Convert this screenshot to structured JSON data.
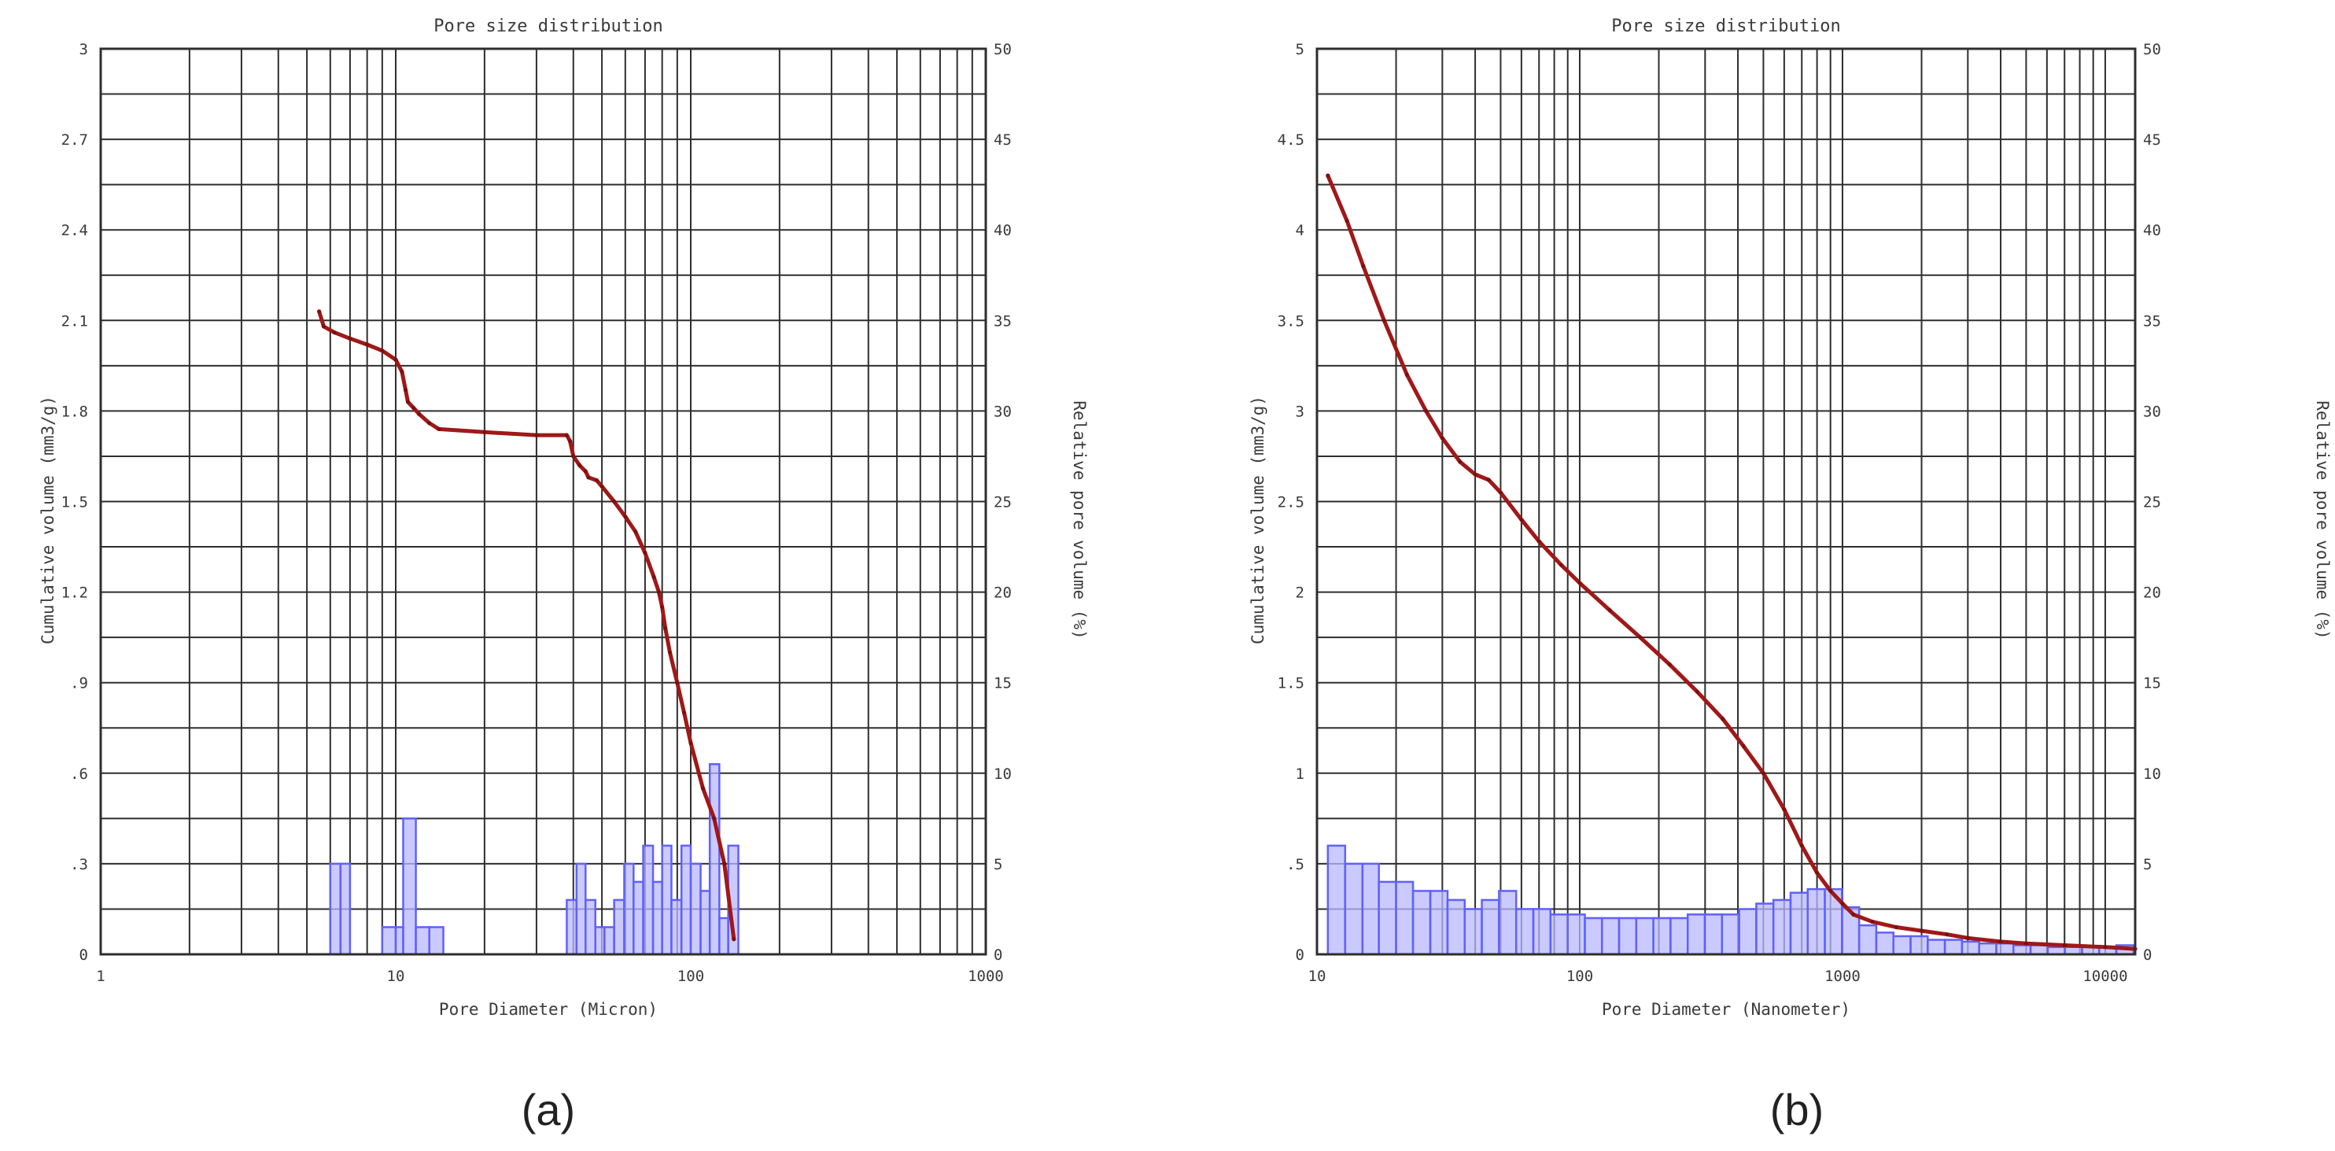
{
  "chart_data": [
    {
      "type": "line",
      "title": "Pore size distribution",
      "xlabel": "Pore Diameter (Micron)",
      "ylabel": "Cumulative volume (mm3/g)",
      "y2label": "Relative pore volume (%)",
      "xscale": "log",
      "xlim": [
        1,
        1000
      ],
      "ylim": [
        0,
        3
      ],
      "y2lim": [
        0,
        50
      ],
      "grid": true,
      "x_tick_labels": [
        "1",
        "10",
        "100",
        "1000"
      ],
      "y_tick_labels": [
        "0",
        ".3",
        ".6",
        ".9",
        "1.2",
        "1.5",
        "1.8",
        "2.1",
        "2.4",
        "2.7",
        "3"
      ],
      "y2_tick_labels": [
        "0",
        "5",
        "10",
        "15",
        "20",
        "25",
        "30",
        "35",
        "40",
        "45",
        "50"
      ],
      "panel_label": "(a)",
      "colors": {
        "curve": "#a01818",
        "bars": "#6060ff"
      },
      "series": [
        {
          "type": "line",
          "axis": "left",
          "x": [
            5.5,
            5.7,
            6.2,
            7,
            8,
            9,
            10,
            10.5,
            10.8,
            11,
            11.5,
            12,
            13,
            14,
            20,
            30,
            38,
            39,
            40,
            42,
            44,
            45,
            48,
            50,
            55,
            60,
            65,
            70,
            75,
            78,
            80,
            82,
            85,
            90,
            95,
            100,
            110,
            120,
            130,
            140
          ],
          "y": [
            2.13,
            2.08,
            2.06,
            2.04,
            2.02,
            2.0,
            1.97,
            1.93,
            1.87,
            1.83,
            1.81,
            1.79,
            1.76,
            1.74,
            1.73,
            1.72,
            1.72,
            1.7,
            1.65,
            1.62,
            1.6,
            1.58,
            1.57,
            1.55,
            1.5,
            1.45,
            1.4,
            1.33,
            1.25,
            1.2,
            1.15,
            1.08,
            1.0,
            0.9,
            0.8,
            0.7,
            0.55,
            0.45,
            0.3,
            0.05
          ]
        },
        {
          "type": "bar",
          "axis": "right",
          "x_left": [
            6.0,
            6.5,
            9.0,
            10.0,
            10.6,
            11.7,
            13.0,
            38.0,
            41.0,
            44.0,
            47.5,
            51.0,
            55.0,
            59.5,
            64.0,
            69.0,
            74.5,
            80.0,
            86.0,
            93.0,
            100.0,
            108.0,
            116.0,
            125.0,
            134.0
          ],
          "x_right": [
            6.5,
            7.0,
            10.0,
            10.6,
            11.7,
            13.0,
            14.5,
            41.0,
            44.0,
            47.5,
            51.0,
            55.0,
            59.5,
            64.0,
            69.0,
            74.5,
            80.0,
            86.0,
            93.0,
            100.0,
            108.0,
            116.0,
            125.0,
            134.0,
            145.0
          ],
          "values": [
            5,
            5,
            1.5,
            1.5,
            7.5,
            1.5,
            1.5,
            3.0,
            5.0,
            3.0,
            1.5,
            1.5,
            3.0,
            5.0,
            4.0,
            6.0,
            4.0,
            6.0,
            3.0,
            6.0,
            5.0,
            3.5,
            10.5,
            2.0,
            6.0
          ]
        }
      ]
    },
    {
      "type": "line",
      "title": "Pore size distribution",
      "xlabel": "Pore Diameter (Nanometer)",
      "ylabel": "Cumulative volume (mm3/g)",
      "y2label": "Relative pore volume (%)",
      "xscale": "log",
      "xlim": [
        10,
        13000
      ],
      "ylim": [
        0,
        5
      ],
      "y2lim": [
        0,
        50
      ],
      "grid": true,
      "x_tick_labels": [
        "10",
        "100",
        "1000",
        "10000"
      ],
      "y_tick_labels": [
        "0",
        ".5",
        "1",
        "1.5",
        "2",
        "2.5",
        "3",
        "3.5",
        "4",
        "4.5",
        "5"
      ],
      "y2_tick_labels": [
        "0",
        "5",
        "10",
        "15",
        "20",
        "25",
        "30",
        "35",
        "40",
        "45",
        "50"
      ],
      "panel_label": "(b)",
      "colors": {
        "curve": "#a01818",
        "bars": "#6060ff"
      },
      "series": [
        {
          "type": "line",
          "axis": "left",
          "x": [
            11,
            13,
            15,
            18,
            22,
            26,
            30,
            35,
            40,
            45,
            50,
            60,
            70,
            85,
            100,
            130,
            170,
            220,
            280,
            350,
            420,
            500,
            600,
            700,
            800,
            900,
            1000,
            1100,
            1300,
            1600,
            2000,
            2500,
            3000,
            4000,
            5000,
            7000,
            10000,
            13000
          ],
          "y": [
            4.3,
            4.05,
            3.8,
            3.5,
            3.2,
            3.0,
            2.85,
            2.72,
            2.65,
            2.62,
            2.55,
            2.4,
            2.28,
            2.15,
            2.05,
            1.9,
            1.75,
            1.6,
            1.45,
            1.3,
            1.15,
            1.0,
            0.8,
            0.6,
            0.45,
            0.35,
            0.28,
            0.22,
            0.18,
            0.15,
            0.13,
            0.11,
            0.09,
            0.07,
            0.06,
            0.05,
            0.04,
            0.03
          ]
        },
        {
          "type": "bar",
          "axis": "right",
          "x_left": [
            11.0,
            12.8,
            14.9,
            17.2,
            20.0,
            23.2,
            27.0,
            31.4,
            36.5,
            42.4,
            49.3,
            57.3,
            66.6,
            77.4,
            90.0,
            104.6,
            121.5,
            141.2,
            164.1,
            190.7,
            221.6,
            257.6,
            299.3,
            347.9,
            404.3,
            469.8,
            546.0,
            634.5,
            737.4,
            856.9,
            995.8,
            1157.3,
            1344.9,
            1562.9,
            1816.3,
            2110.8,
            2453.0,
            2850.6,
            3312.8,
            3849.9,
            4474.0,
            5199.4,
            6042.3,
            7021.8,
            8160.2,
            9483.1,
            11020.5
          ],
          "x_right": [
            12.8,
            14.9,
            17.2,
            20.0,
            23.2,
            27.0,
            31.4,
            36.5,
            42.4,
            49.3,
            57.3,
            66.6,
            77.4,
            90.0,
            104.6,
            121.5,
            141.2,
            164.1,
            190.7,
            221.6,
            257.6,
            299.3,
            347.9,
            404.3,
            469.8,
            546.0,
            634.5,
            737.4,
            856.9,
            995.8,
            1157.3,
            1344.9,
            1562.9,
            1816.3,
            2110.8,
            2453.0,
            2850.6,
            3312.8,
            3849.9,
            4474.0,
            5199.4,
            6042.3,
            7021.8,
            8160.2,
            9483.1,
            11020.5,
            12807.1
          ],
          "values": [
            6,
            5,
            5,
            4,
            4,
            3.5,
            3.5,
            3,
            2.5,
            3,
            3.5,
            2.5,
            2.5,
            2.2,
            2.2,
            2,
            2,
            2,
            2,
            2,
            2,
            2.2,
            2.2,
            2.2,
            2.5,
            2.8,
            3,
            3.4,
            3.6,
            3.6,
            2.6,
            1.6,
            1.2,
            1,
            1,
            0.8,
            0.8,
            0.7,
            0.6,
            0.6,
            0.5,
            0.5,
            0.4,
            0.4,
            0.4,
            0.4,
            0.5
          ]
        }
      ]
    }
  ]
}
